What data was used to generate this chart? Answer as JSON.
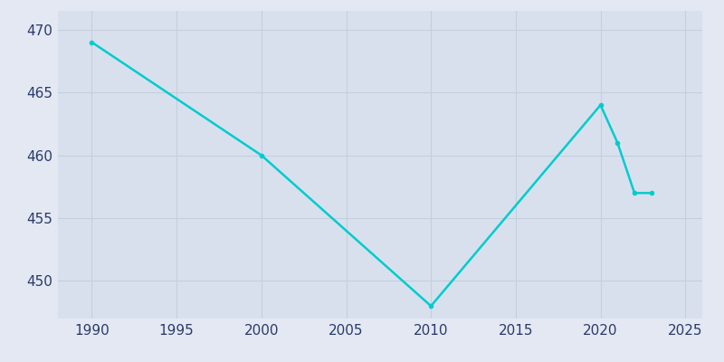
{
  "years": [
    1990,
    2000,
    2010,
    2020,
    2021,
    2022,
    2023
  ],
  "population": [
    469,
    460,
    448,
    464,
    461,
    457,
    457
  ],
  "line_color": "#00CCCC",
  "marker": "o",
  "marker_size": 3,
  "line_width": 1.8,
  "bg_color": "#E3E8F2",
  "plot_bg_color": "#D8E0EE",
  "grid_color": "#C5CEDF",
  "tick_color": "#2B3A6B",
  "tick_fontsize": 11,
  "xlim": [
    1988,
    2026
  ],
  "ylim": [
    447,
    471.5
  ],
  "xticks": [
    1990,
    1995,
    2000,
    2005,
    2010,
    2015,
    2020,
    2025
  ],
  "yticks": [
    450,
    455,
    460,
    465,
    470
  ]
}
